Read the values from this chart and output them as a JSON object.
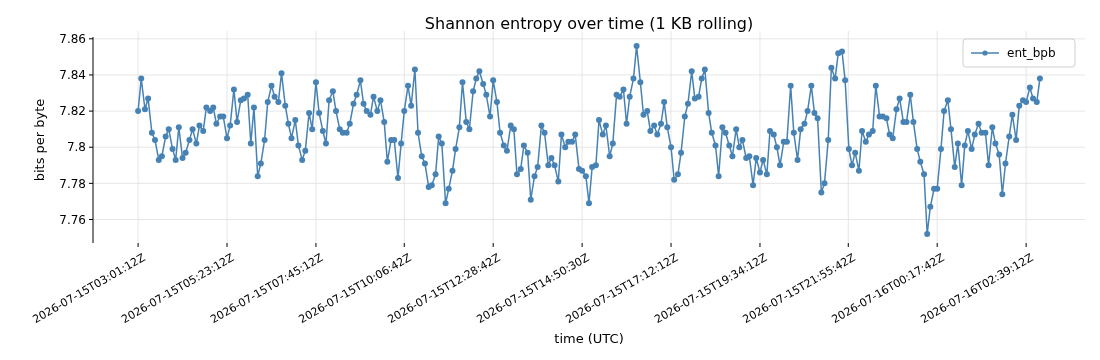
{
  "chart_data": {
    "type": "line",
    "title": "Shannon entropy over time (1 KB rolling)",
    "xlabel": "time (UTC)",
    "ylabel": "bits per byte",
    "xlim": [
      "2026-07-15T01:49",
      "2026-07-16T04:13"
    ],
    "ylim": [
      7.747,
      7.861
    ],
    "xticks": [
      {
        "value": "2026-07-15T03:01",
        "label": "2026-07-15T03:01:12Z"
      },
      {
        "value": "2026-07-15T05:23",
        "label": "2026-07-15T05:23:12Z"
      },
      {
        "value": "2026-07-15T07:45",
        "label": "2026-07-15T07:45:12Z"
      },
      {
        "value": "2026-07-15T10:06",
        "label": "2026-07-15T10:06:42Z"
      },
      {
        "value": "2026-07-15T12:28",
        "label": "2026-07-15T12:28:42Z"
      },
      {
        "value": "2026-07-15T14:50",
        "label": "2026-07-15T14:50:30Z"
      },
      {
        "value": "2026-07-15T17:12",
        "label": "2026-07-15T17:12:12Z"
      },
      {
        "value": "2026-07-15T19:34",
        "label": "2026-07-15T19:34:12Z"
      },
      {
        "value": "2026-07-15T21:55",
        "label": "2026-07-15T21:55:42Z"
      },
      {
        "value": "2026-07-16T00:17",
        "label": "2026-07-16T00:17:42Z"
      },
      {
        "value": "2026-07-16T02:39",
        "label": "2026-07-16T02:39:12Z"
      }
    ],
    "yticks": [
      7.76,
      7.78,
      7.8,
      7.82,
      7.84,
      7.86
    ],
    "grid": true,
    "legend": "top right",
    "marker": "circle",
    "line_style": "solid",
    "x": [
      "2026-07-15T03:01",
      "2026-07-15T03:06",
      "2026-07-15T03:12",
      "2026-07-15T03:17",
      "2026-07-15T03:23",
      "2026-07-15T03:28",
      "2026-07-15T03:34",
      "2026-07-15T03:39",
      "2026-07-15T03:45",
      "2026-07-15T03:50",
      "2026-07-15T03:56",
      "2026-07-15T04:01",
      "2026-07-15T04:06",
      "2026-07-15T04:12",
      "2026-07-15T04:17",
      "2026-07-15T04:23",
      "2026-07-15T04:28",
      "2026-07-15T04:34",
      "2026-07-15T04:39",
      "2026-07-15T04:45",
      "2026-07-15T04:50",
      "2026-07-15T04:56",
      "2026-07-15T05:01",
      "2026-07-15T05:06",
      "2026-07-15T05:12",
      "2026-07-15T05:17",
      "2026-07-15T05:23",
      "2026-07-15T05:28",
      "2026-07-15T05:34",
      "2026-07-15T05:39",
      "2026-07-15T05:45",
      "2026-07-15T05:50",
      "2026-07-15T05:56",
      "2026-07-15T06:01",
      "2026-07-15T06:06",
      "2026-07-15T06:12",
      "2026-07-15T06:17",
      "2026-07-15T06:23",
      "2026-07-15T06:28",
      "2026-07-15T06:34",
      "2026-07-15T06:39",
      "2026-07-15T06:45",
      "2026-07-15T06:50",
      "2026-07-15T06:56",
      "2026-07-15T07:01",
      "2026-07-15T07:06",
      "2026-07-15T07:12",
      "2026-07-15T07:17",
      "2026-07-15T07:23",
      "2026-07-15T07:28",
      "2026-07-15T07:34",
      "2026-07-15T07:39",
      "2026-07-15T07:45",
      "2026-07-15T07:50",
      "2026-07-15T07:56",
      "2026-07-15T08:01",
      "2026-07-15T08:06",
      "2026-07-15T08:12",
      "2026-07-15T08:17",
      "2026-07-15T08:23",
      "2026-07-15T08:28",
      "2026-07-15T08:34",
      "2026-07-15T08:39",
      "2026-07-15T08:45",
      "2026-07-15T08:50",
      "2026-07-15T08:56",
      "2026-07-15T09:01",
      "2026-07-15T09:06",
      "2026-07-15T09:12",
      "2026-07-15T09:17",
      "2026-07-15T09:23",
      "2026-07-15T09:28",
      "2026-07-15T09:34",
      "2026-07-15T09:39",
      "2026-07-15T09:45",
      "2026-07-15T09:50",
      "2026-07-15T09:56",
      "2026-07-15T10:01",
      "2026-07-15T10:06",
      "2026-07-15T10:12",
      "2026-07-15T10:17",
      "2026-07-15T10:23",
      "2026-07-15T10:28",
      "2026-07-15T10:34",
      "2026-07-15T10:39",
      "2026-07-15T10:45",
      "2026-07-15T10:50",
      "2026-07-15T10:56",
      "2026-07-15T11:01",
      "2026-07-15T11:06",
      "2026-07-15T11:12",
      "2026-07-15T11:17",
      "2026-07-15T11:23",
      "2026-07-15T11:28",
      "2026-07-15T11:34",
      "2026-07-15T11:39",
      "2026-07-15T11:45",
      "2026-07-15T11:50",
      "2026-07-15T11:56",
      "2026-07-15T12:01",
      "2026-07-15T12:06",
      "2026-07-15T12:12",
      "2026-07-15T12:17",
      "2026-07-15T12:23",
      "2026-07-15T12:28",
      "2026-07-15T12:34",
      "2026-07-15T12:39",
      "2026-07-15T12:45",
      "2026-07-15T12:50",
      "2026-07-15T12:56",
      "2026-07-15T13:01",
      "2026-07-15T13:06",
      "2026-07-15T13:12",
      "2026-07-15T13:17",
      "2026-07-15T13:23",
      "2026-07-15T13:28",
      "2026-07-15T13:34",
      "2026-07-15T13:39",
      "2026-07-15T13:45",
      "2026-07-15T13:50",
      "2026-07-15T13:56",
      "2026-07-15T14:01",
      "2026-07-15T14:06",
      "2026-07-15T14:12",
      "2026-07-15T14:17",
      "2026-07-15T14:23",
      "2026-07-15T14:28",
      "2026-07-15T14:34",
      "2026-07-15T14:39",
      "2026-07-15T14:45",
      "2026-07-15T14:50",
      "2026-07-15T14:56",
      "2026-07-15T15:01",
      "2026-07-15T15:06",
      "2026-07-15T15:12",
      "2026-07-15T15:17",
      "2026-07-15T15:23",
      "2026-07-15T15:28",
      "2026-07-15T15:34",
      "2026-07-15T15:39",
      "2026-07-15T15:45",
      "2026-07-15T15:50",
      "2026-07-15T15:56",
      "2026-07-15T16:01",
      "2026-07-15T16:06",
      "2026-07-15T16:12",
      "2026-07-15T16:17",
      "2026-07-15T16:23",
      "2026-07-15T16:28",
      "2026-07-15T16:34",
      "2026-07-15T16:39",
      "2026-07-15T16:45",
      "2026-07-15T16:50",
      "2026-07-15T16:56",
      "2026-07-15T17:01",
      "2026-07-15T17:06",
      "2026-07-15T17:12",
      "2026-07-15T17:17",
      "2026-07-15T17:23",
      "2026-07-15T17:28",
      "2026-07-15T17:34",
      "2026-07-15T17:39",
      "2026-07-15T17:45",
      "2026-07-15T17:50",
      "2026-07-15T17:56",
      "2026-07-15T18:01",
      "2026-07-15T18:06",
      "2026-07-15T18:12",
      "2026-07-15T18:17",
      "2026-07-15T18:23",
      "2026-07-15T18:28",
      "2026-07-15T18:34",
      "2026-07-15T18:39",
      "2026-07-15T18:45",
      "2026-07-15T18:50",
      "2026-07-15T18:56",
      "2026-07-15T19:01",
      "2026-07-15T19:06",
      "2026-07-15T19:12",
      "2026-07-15T19:17",
      "2026-07-15T19:23",
      "2026-07-15T19:28",
      "2026-07-15T19:34",
      "2026-07-15T19:39",
      "2026-07-15T19:45",
      "2026-07-15T19:50",
      "2026-07-15T19:56",
      "2026-07-15T20:01",
      "2026-07-15T20:06",
      "2026-07-15T20:12",
      "2026-07-15T20:17",
      "2026-07-15T20:23",
      "2026-07-15T20:28",
      "2026-07-15T20:34",
      "2026-07-15T20:39",
      "2026-07-15T20:45",
      "2026-07-15T20:50",
      "2026-07-15T20:56",
      "2026-07-15T21:01",
      "2026-07-15T21:06",
      "2026-07-15T21:12",
      "2026-07-15T21:17",
      "2026-07-15T21:23",
      "2026-07-15T21:28",
      "2026-07-15T21:34",
      "2026-07-15T21:39",
      "2026-07-15T21:45",
      "2026-07-15T21:50",
      "2026-07-15T21:56",
      "2026-07-15T22:01",
      "2026-07-15T22:06",
      "2026-07-15T22:12",
      "2026-07-15T22:17",
      "2026-07-15T22:23",
      "2026-07-15T22:28",
      "2026-07-15T22:34",
      "2026-07-15T22:39",
      "2026-07-15T22:45",
      "2026-07-15T22:50",
      "2026-07-15T22:56",
      "2026-07-15T23:01",
      "2026-07-15T23:06",
      "2026-07-15T23:12",
      "2026-07-15T23:17",
      "2026-07-15T23:23",
      "2026-07-15T23:28",
      "2026-07-15T23:34",
      "2026-07-15T23:39",
      "2026-07-15T23:45",
      "2026-07-15T23:50",
      "2026-07-15T23:56",
      "2026-07-16T00:01",
      "2026-07-16T00:06",
      "2026-07-16T00:12",
      "2026-07-16T00:17",
      "2026-07-16T00:23",
      "2026-07-16T00:28",
      "2026-07-16T00:34",
      "2026-07-16T00:39",
      "2026-07-16T00:45",
      "2026-07-16T00:50",
      "2026-07-16T00:56",
      "2026-07-16T01:01",
      "2026-07-16T01:06",
      "2026-07-16T01:12",
      "2026-07-16T01:17",
      "2026-07-16T01:23",
      "2026-07-16T01:28",
      "2026-07-16T01:34",
      "2026-07-16T01:39",
      "2026-07-16T01:45",
      "2026-07-16T01:50",
      "2026-07-16T01:56",
      "2026-07-16T02:01",
      "2026-07-16T02:06",
      "2026-07-16T02:12",
      "2026-07-16T02:17",
      "2026-07-16T02:23",
      "2026-07-16T02:28",
      "2026-07-16T02:34",
      "2026-07-16T02:39",
      "2026-07-16T02:45",
      "2026-07-16T02:50",
      "2026-07-16T02:56",
      "2026-07-16T03:01"
    ],
    "series": [
      {
        "name": "ent_bpb",
        "color": "#4682b4",
        "values": [
          7.82,
          7.838,
          7.821,
          7.827,
          7.808,
          7.804,
          7.793,
          7.795,
          7.806,
          7.81,
          7.799,
          7.793,
          7.811,
          7.794,
          7.797,
          7.804,
          7.81,
          7.802,
          7.812,
          7.809,
          7.822,
          7.82,
          7.822,
          7.813,
          7.817,
          7.817,
          7.805,
          7.812,
          7.832,
          7.814,
          7.826,
          7.827,
          7.829,
          7.802,
          7.822,
          7.784,
          7.791,
          7.804,
          7.825,
          7.834,
          7.828,
          7.825,
          7.841,
          7.823,
          7.813,
          7.805,
          7.815,
          7.801,
          7.793,
          7.798,
          7.819,
          7.81,
          7.836,
          7.819,
          7.809,
          7.802,
          7.826,
          7.831,
          7.82,
          7.81,
          7.808,
          7.808,
          7.813,
          7.824,
          7.829,
          7.837,
          7.824,
          7.82,
          7.818,
          7.828,
          7.82,
          7.826,
          7.814,
          7.792,
          7.804,
          7.804,
          7.783,
          7.802,
          7.82,
          7.834,
          7.823,
          7.843,
          7.808,
          7.795,
          7.791,
          7.778,
          7.779,
          7.785,
          7.806,
          7.802,
          7.769,
          7.777,
          7.787,
          7.799,
          7.811,
          7.836,
          7.814,
          7.81,
          7.831,
          7.838,
          7.842,
          7.835,
          7.829,
          7.817,
          7.837,
          7.825,
          7.808,
          7.801,
          7.798,
          7.812,
          7.81,
          7.785,
          7.788,
          7.801,
          7.797,
          7.771,
          7.784,
          7.789,
          7.812,
          7.808,
          7.79,
          7.794,
          7.79,
          7.781,
          7.807,
          7.8,
          7.803,
          7.803,
          7.807,
          7.788,
          7.787,
          7.784,
          7.769,
          7.789,
          7.79,
          7.815,
          7.807,
          7.812,
          7.795,
          7.802,
          7.829,
          7.828,
          7.832,
          7.813,
          7.828,
          7.838,
          7.856,
          7.836,
          7.818,
          7.82,
          7.809,
          7.812,
          7.807,
          7.813,
          7.825,
          7.811,
          7.8,
          7.782,
          7.785,
          7.797,
          7.817,
          7.824,
          7.842,
          7.827,
          7.828,
          7.838,
          7.843,
          7.819,
          7.808,
          7.801,
          7.784,
          7.811,
          7.808,
          7.801,
          7.795,
          7.81,
          7.8,
          7.804,
          7.794,
          7.795,
          7.779,
          7.794,
          7.786,
          7.793,
          7.785,
          7.809,
          7.807,
          7.8,
          7.79,
          7.803,
          7.803,
          7.834,
          7.808,
          7.793,
          7.81,
          7.813,
          7.82,
          7.834,
          7.819,
          7.816,
          7.775,
          7.78,
          7.804,
          7.844,
          7.838,
          7.852,
          7.853,
          7.837,
          7.799,
          7.79,
          7.797,
          7.787,
          7.809,
          7.803,
          7.807,
          7.809,
          7.834,
          7.817,
          7.817,
          7.816,
          7.807,
          7.805,
          7.821,
          7.827,
          7.814,
          7.814,
          7.829,
          7.814,
          7.799,
          7.792,
          7.785,
          7.752,
          7.767,
          7.777,
          7.777,
          7.799,
          7.82,
          7.826,
          7.81,
          7.789,
          7.802,
          7.779,
          7.801,
          7.809,
          7.799,
          7.807,
          7.813,
          7.808,
          7.808,
          7.79,
          7.811,
          7.802,
          7.796,
          7.774,
          7.791,
          7.806,
          7.818,
          7.804,
          7.823,
          7.826,
          7.825,
          7.833,
          7.827,
          7.825,
          7.838
        ]
      }
    ]
  }
}
